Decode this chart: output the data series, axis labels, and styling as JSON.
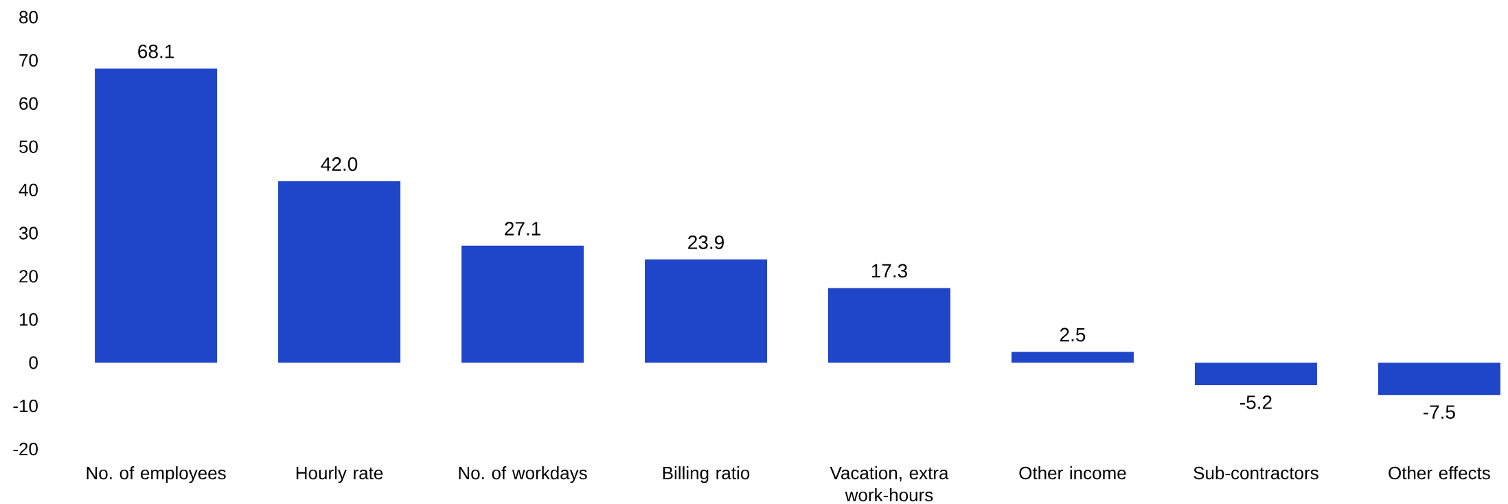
{
  "chart_data": {
    "type": "bar",
    "categories": [
      "No. of employees",
      "Hourly rate",
      "No. of workdays",
      "Billing ratio",
      "Vacation, extra work-hours",
      "Other income",
      "Sub-contractors",
      "Other effects"
    ],
    "values": [
      68.1,
      42.0,
      27.1,
      23.9,
      17.3,
      2.5,
      -5.2,
      -7.5
    ],
    "value_labels": [
      "68.1",
      "42.0",
      "27.1",
      "23.9",
      "17.3",
      "2.5",
      "-5.2",
      "-7.5"
    ],
    "color": "#1f45c8",
    "ylim": [
      -20,
      80
    ],
    "yticks": [
      -20,
      -10,
      0,
      10,
      20,
      30,
      40,
      50,
      60,
      70,
      80
    ],
    "grid": false
  }
}
